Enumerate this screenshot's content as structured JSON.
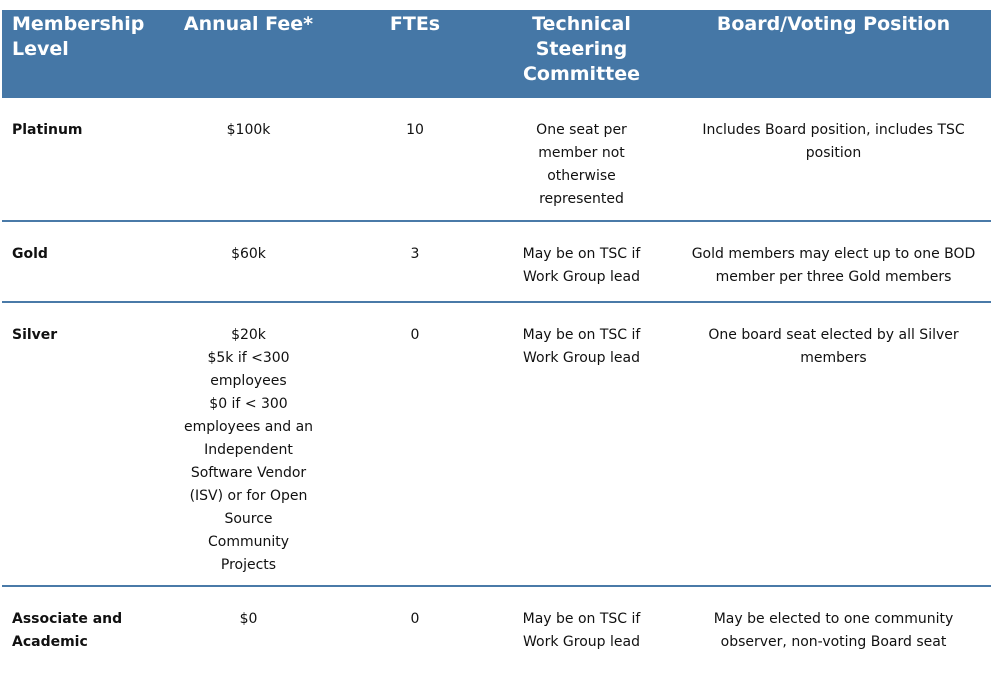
{
  "colors": {
    "header_bg": "#4577a6",
    "divider": "#4a7aa8"
  },
  "headers": [
    "Membership\nLevel",
    "Annual Fee*",
    "FTEs",
    "Technical\nSteering\nCommittee",
    "Board/Voting Position"
  ],
  "rows": [
    {
      "level": "Platinum",
      "fee": "$100k",
      "ftes": "10",
      "tsc": "One seat per\nmember not\notherwise\nrepresented",
      "board": "Includes Board position, includes TSC\nposition"
    },
    {
      "level": "Gold",
      "fee": "$60k",
      "ftes": "3",
      "tsc": "May be on TSC if\nWork Group lead",
      "board": "Gold members may elect up to one BOD\nmember per three Gold members"
    },
    {
      "level": "Silver",
      "fee": "$20k\n$5k if <300\nemployees\n$0 if < 300\nemployees and an\nIndependent\nSoftware Vendor\n(ISV) or for Open\nSource\nCommunity\nProjects",
      "ftes": "0",
      "tsc": "May be on TSC if\nWork Group lead",
      "board": "One board seat elected by all Silver\nmembers"
    },
    {
      "level": "Associate and\nAcademic",
      "fee": "$0",
      "ftes": "0",
      "tsc": "May be on TSC if\nWork Group lead",
      "board": "May be elected to one community\nobserver, non-voting Board seat"
    }
  ]
}
